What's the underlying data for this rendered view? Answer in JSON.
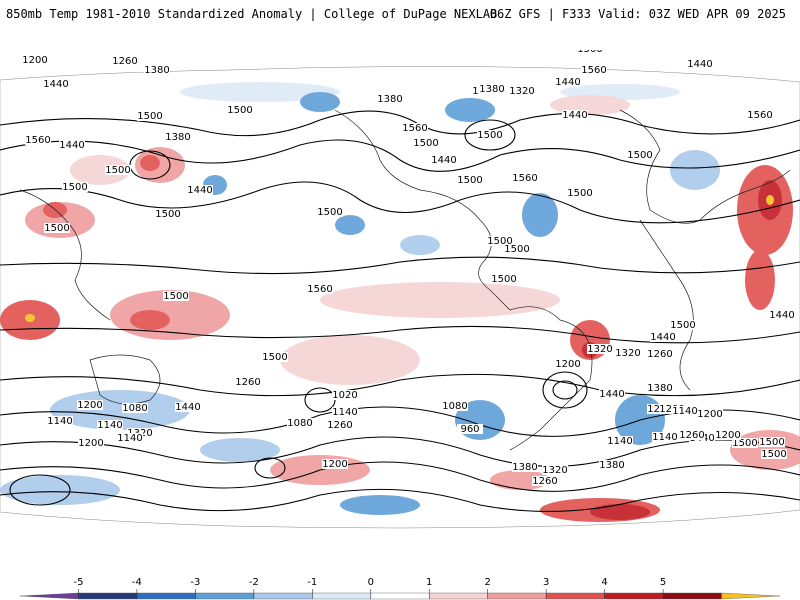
{
  "header": {
    "title": "850mb Temp 1981-2010 Standardized Anomaly | College of DuPage NEXLAB",
    "run_info": "06Z GFS | F333 Valid: 03Z WED APR 09 2025"
  },
  "colorbar": {
    "ticks": [
      "-5",
      "-4",
      "-3",
      "-2",
      "-1",
      "0",
      "1",
      "2",
      "3",
      "4",
      "5"
    ],
    "colors": [
      "#6a3d9a",
      "#253a78",
      "#2f6fbf",
      "#5f9fd8",
      "#a9c9ea",
      "#dce9f6",
      "#ffffff",
      "#f6d3d3",
      "#ef9d9d",
      "#e0524f",
      "#c11b22",
      "#8e0d15",
      "#f7c21e"
    ]
  },
  "contour_labels": [
    "1380",
    "1320",
    "1500",
    "1560",
    "1200",
    "1260",
    "1380",
    "1320",
    "1440",
    "1500",
    "1380",
    "1440",
    "1560",
    "1500",
    "1440",
    "1500",
    "1380",
    "1500",
    "1560",
    "1500",
    "1500",
    "1440",
    "1500",
    "1560",
    "1500",
    "1380",
    "1320",
    "1440",
    "1560",
    "1440",
    "1440",
    "1500",
    "1500",
    "1500",
    "1500",
    "1500",
    "1500",
    "1500",
    "1500",
    "1560",
    "1440",
    "1320",
    "1260",
    "1500",
    "1440",
    "1200",
    "1380",
    "1260",
    "1140",
    "1020",
    "1080",
    "960",
    "1260",
    "1140",
    "1080",
    "1140",
    "1320",
    "1200",
    "1140",
    "1200",
    "1140",
    "1260",
    "1080",
    "1200",
    "1380",
    "1260",
    "1320",
    "1380",
    "1440",
    "1500",
    "1200",
    "1140",
    "1500",
    "1200",
    "1440",
    "1500",
    "1320",
    "1440",
    "1140",
    "1260",
    "1200",
    "1500"
  ]
}
